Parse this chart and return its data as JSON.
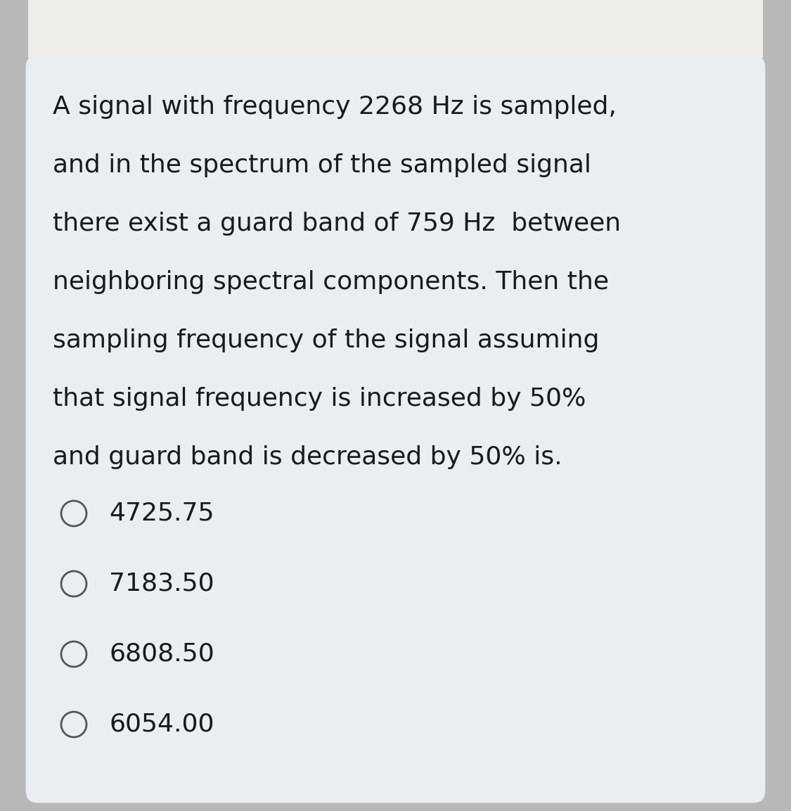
{
  "background_outer": "#b8b8b8",
  "background_top_bar": "#f0eeeb",
  "background_inner": "#e8eef2",
  "text_color": "#1a1a1a",
  "question_lines": [
    "A signal with frequency 2268 Hz is sampled,",
    "and in the spectrum of the sampled signal",
    "there exist a guard band of 759 Hz  between",
    "neighboring spectral components. Then the",
    "sampling frequency of the signal assuming",
    "that signal frequency is increased by 50%",
    "and guard band is decreased by 50% is."
  ],
  "options": [
    "4725.75",
    "7183.50",
    "6808.50",
    "6054.00"
  ],
  "option_text_color": "#1a1a1a",
  "circle_edge_color": "#555555",
  "question_fontsize": 26,
  "option_fontsize": 26
}
